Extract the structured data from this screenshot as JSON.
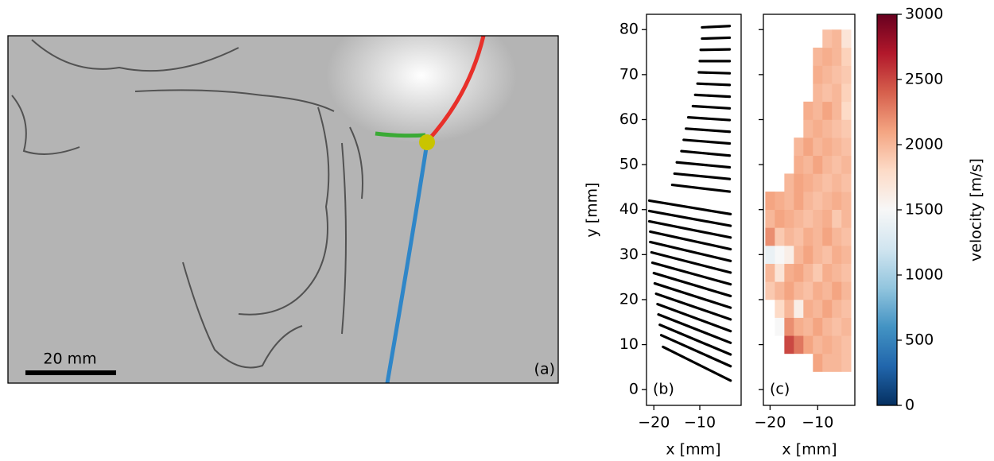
{
  "chart_data": [
    {
      "type": "image",
      "scale_bar": "20 mm",
      "panel_label": "(a)"
    },
    {
      "type": "line",
      "panel_label": "(b)",
      "xlabel": "x [mm]",
      "ylabel": "y [mm]",
      "color": "#000000",
      "xlim": [
        -21.6,
        -1
      ],
      "ylim": [
        -3.5,
        83.4
      ],
      "xticks": [
        {
          "value": -20,
          "label": "−20"
        },
        {
          "value": -10,
          "label": "−10"
        }
      ],
      "yticks": [
        0,
        10,
        20,
        30,
        40,
        50,
        60,
        70,
        80
      ],
      "series": [
        {
          "x": [
            -9.5,
            -3.5
          ],
          "y": [
            80.5,
            80.8
          ]
        },
        {
          "x": [
            -9.5,
            -3.5
          ],
          "y": [
            78,
            78.2
          ]
        },
        {
          "x": [
            -9.8,
            -3.5
          ],
          "y": [
            75.5,
            75.6
          ]
        },
        {
          "x": [
            -10,
            -3.5
          ],
          "y": [
            73,
            73
          ]
        },
        {
          "x": [
            -10.2,
            -3.5
          ],
          "y": [
            70.5,
            70.3
          ]
        },
        {
          "x": [
            -10.5,
            -3.5
          ],
          "y": [
            68,
            67.7
          ]
        },
        {
          "x": [
            -11,
            -3.5
          ],
          "y": [
            65.5,
            65.1
          ]
        },
        {
          "x": [
            -11.5,
            -3.5
          ],
          "y": [
            63,
            62.5
          ]
        },
        {
          "x": [
            -12.5,
            -3.5
          ],
          "y": [
            60.5,
            59.9
          ]
        },
        {
          "x": [
            -13,
            -3.5
          ],
          "y": [
            58,
            57.3
          ]
        },
        {
          "x": [
            -13.5,
            -3.5
          ],
          "y": [
            55.5,
            54.7
          ]
        },
        {
          "x": [
            -14,
            -3.5
          ],
          "y": [
            53,
            52
          ]
        },
        {
          "x": [
            -15,
            -3.5
          ],
          "y": [
            50.5,
            49.4
          ]
        },
        {
          "x": [
            -15.5,
            -3.5
          ],
          "y": [
            48,
            46.8
          ]
        },
        {
          "x": [
            -16,
            -3.5
          ],
          "y": [
            45.5,
            44
          ]
        },
        {
          "x": [
            -21,
            -3.3
          ],
          "y": [
            42,
            39
          ]
        },
        {
          "x": [
            -21,
            -3.3
          ],
          "y": [
            39.7,
            36.4
          ]
        },
        {
          "x": [
            -21,
            -3.3
          ],
          "y": [
            37.4,
            33.8
          ]
        },
        {
          "x": [
            -20.8,
            -3.3
          ],
          "y": [
            35.1,
            31.2
          ]
        },
        {
          "x": [
            -20.8,
            -3.3
          ],
          "y": [
            32.8,
            28.6
          ]
        },
        {
          "x": [
            -20.5,
            -3.3
          ],
          "y": [
            30.5,
            26
          ]
        },
        {
          "x": [
            -20.3,
            -3.3
          ],
          "y": [
            28.2,
            23.4
          ]
        },
        {
          "x": [
            -20,
            -3.3
          ],
          "y": [
            25.9,
            20.8
          ]
        },
        {
          "x": [
            -19.8,
            -3.3
          ],
          "y": [
            23.6,
            18.2
          ]
        },
        {
          "x": [
            -19.5,
            -3.3
          ],
          "y": [
            21.3,
            15.6
          ]
        },
        {
          "x": [
            -19.2,
            -3.3
          ],
          "y": [
            19,
            13
          ]
        },
        {
          "x": [
            -19,
            -3.3
          ],
          "y": [
            16.7,
            10.4
          ]
        },
        {
          "x": [
            -18.7,
            -3.3
          ],
          "y": [
            14.4,
            7.8
          ]
        },
        {
          "x": [
            -18.4,
            -3.3
          ],
          "y": [
            12.1,
            5.2
          ]
        },
        {
          "x": [
            -18,
            -3.3
          ],
          "y": [
            9.5,
            2
          ]
        }
      ]
    },
    {
      "type": "heatmap",
      "panel_label": "(c)",
      "xlabel": "x [mm]",
      "xlim": [
        -21.4,
        -2.2
      ],
      "ylim": [
        -3.5,
        83.4
      ],
      "xticks": [
        {
          "value": -20,
          "label": "−20"
        },
        {
          "value": -10,
          "label": "−10"
        }
      ],
      "yticks": [
        0,
        10,
        20,
        30,
        40,
        50,
        60,
        70,
        80
      ],
      "x_edges": [
        -21,
        -19,
        -17,
        -15,
        -13,
        -11,
        -9,
        -7,
        -5,
        -3
      ],
      "y_edges": [
        4,
        8,
        12,
        16,
        20,
        24,
        28,
        32,
        36,
        40,
        44,
        48,
        52,
        56,
        60,
        64,
        68,
        72,
        76,
        80
      ],
      "values": [
        [
          null,
          null,
          null,
          null,
          null,
          2100,
          2000,
          2000,
          1950
        ],
        [
          null,
          null,
          2500,
          2300,
          2100,
          2000,
          2050,
          2000,
          1950
        ],
        [
          null,
          1500,
          2200,
          2050,
          2000,
          2100,
          2000,
          1950,
          2000
        ],
        [
          null,
          1800,
          2000,
          1600,
          2050,
          2000,
          2100,
          2000,
          1950
        ],
        [
          1900,
          2000,
          2100,
          2000,
          1950,
          2050,
          2000,
          2100,
          2000
        ],
        [
          2000,
          1700,
          2050,
          2100,
          2000,
          1900,
          2050,
          2000,
          1950
        ],
        [
          1400,
          1500,
          1600,
          2000,
          2100,
          2000,
          1950,
          2050,
          2000
        ],
        [
          2200,
          1900,
          2000,
          1950,
          2050,
          2000,
          2100,
          2000,
          1950
        ],
        [
          2000,
          2100,
          2050,
          2000,
          1950,
          2000,
          2050,
          1900,
          2000
        ],
        [
          2100,
          2050,
          2000,
          2100,
          2000,
          1950,
          2000,
          2050,
          2000
        ],
        [
          null,
          null,
          2000,
          2100,
          2050,
          2000,
          1950,
          2000,
          1950
        ],
        [
          null,
          null,
          null,
          2050,
          2000,
          2100,
          2000,
          1950,
          2000
        ],
        [
          null,
          null,
          null,
          2000,
          2100,
          2000,
          2050,
          2000,
          1950
        ],
        [
          null,
          null,
          null,
          null,
          2000,
          2050,
          2000,
          1950,
          1900
        ],
        [
          null,
          null,
          null,
          null,
          2050,
          2000,
          2100,
          2000,
          1800
        ],
        [
          null,
          null,
          null,
          null,
          null,
          2000,
          1950,
          2000,
          1850
        ],
        [
          null,
          null,
          null,
          null,
          null,
          2050,
          2000,
          1950,
          1900
        ],
        [
          null,
          null,
          null,
          null,
          null,
          2000,
          2050,
          2000,
          1850
        ],
        [
          null,
          null,
          null,
          null,
          null,
          null,
          1950,
          2000,
          1700
        ]
      ],
      "colorbar": {
        "label": "velocity [m/s]",
        "lim": [
          0,
          3000
        ],
        "ticks": [
          0,
          500,
          1000,
          1500,
          2000,
          2500,
          3000
        ],
        "colors": [
          "#053061",
          "#2166ac",
          "#4393c3",
          "#92c5de",
          "#d1e5f0",
          "#f7f7f7",
          "#fddbc7",
          "#f4a582",
          "#d6604d",
          "#b2182b",
          "#67001f"
        ]
      }
    }
  ]
}
